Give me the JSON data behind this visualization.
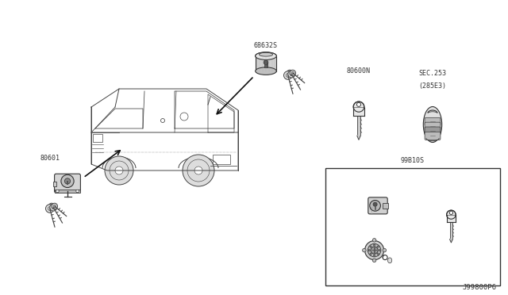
{
  "fig_width": 6.4,
  "fig_height": 3.72,
  "dpi": 100,
  "labels": {
    "top_lock": "68632S",
    "door_lock": "80601",
    "blank_key": "80600N",
    "smart_key_line1": "SEC.253",
    "smart_key_line2": "(285E3)",
    "key_set": "99B10S",
    "part_num": "J99800P6"
  },
  "lc": "#333333",
  "lc2": "#555555",
  "tc": "#333333",
  "fs": 6.0
}
